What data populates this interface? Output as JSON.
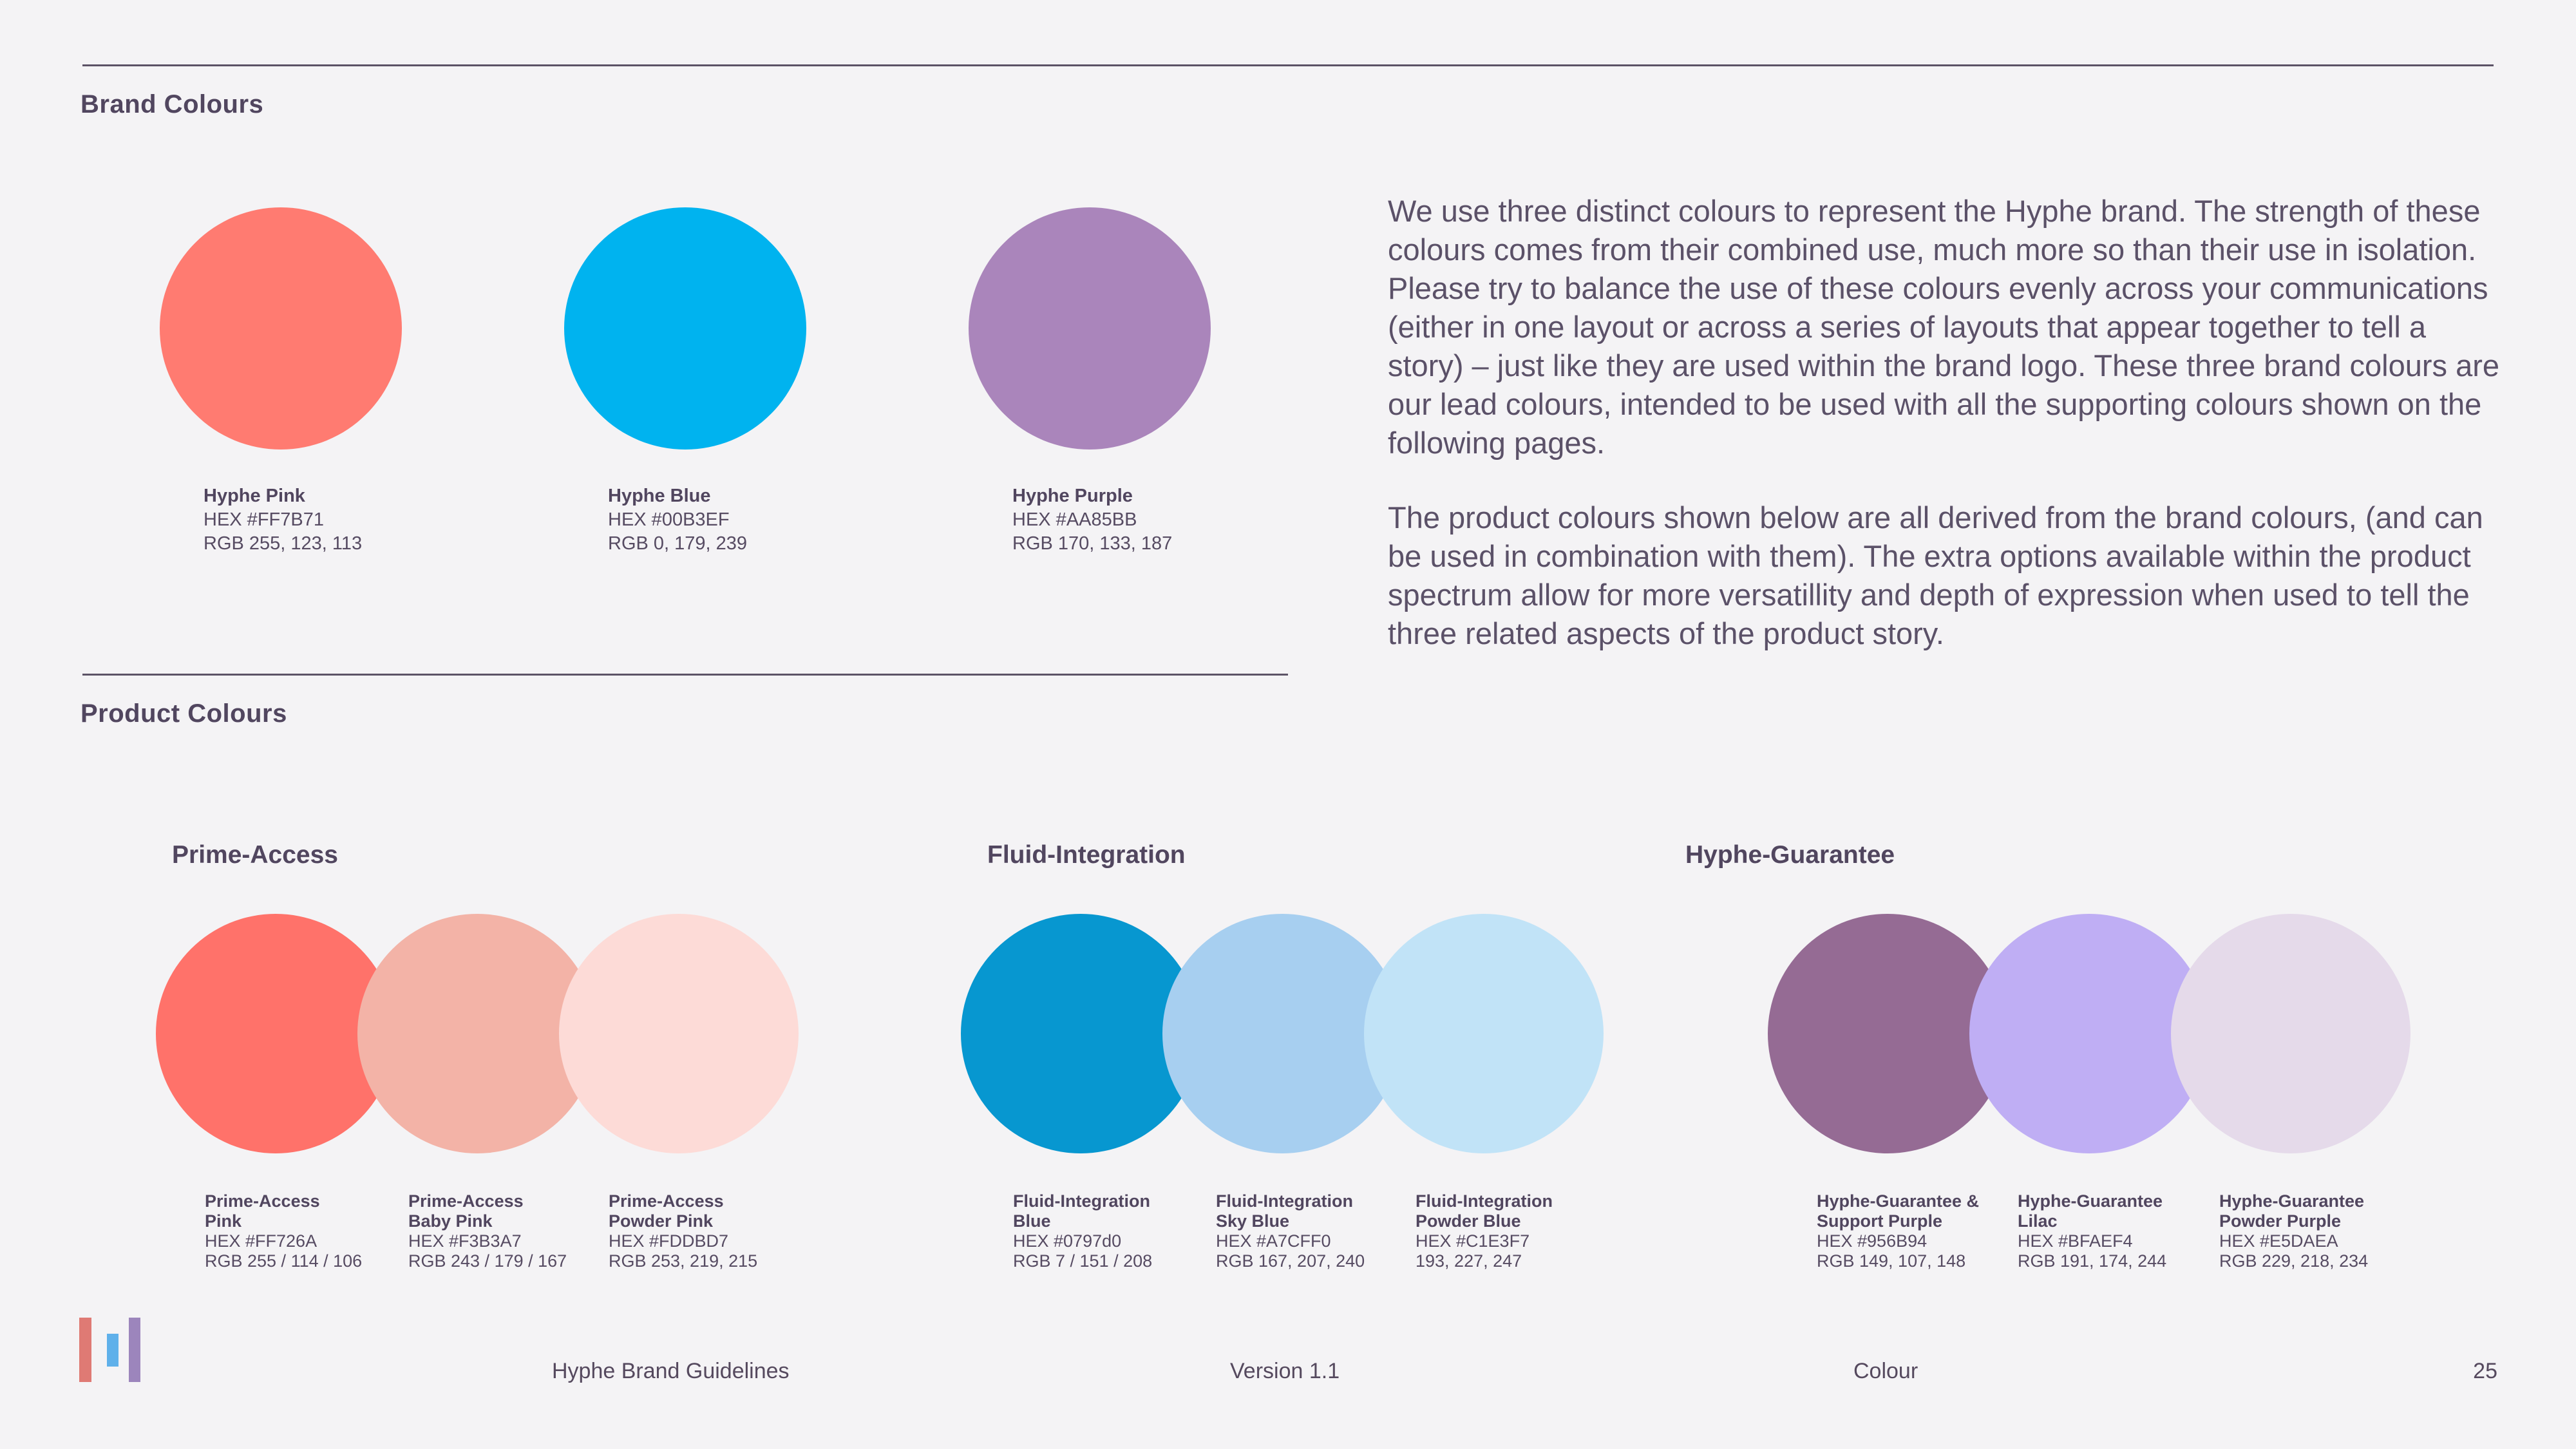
{
  "page": {
    "background": "#F4F3F5"
  },
  "brand_section": {
    "heading": "Brand Colours",
    "swatches": [
      {
        "name": "Hyphe Pink",
        "hex_label": "HEX #FF7B71",
        "rgb_label": "RGB 255, 123, 113",
        "color": "#FF7B71"
      },
      {
        "name": "Hyphe Blue",
        "hex_label": "HEX #00B3EF",
        "rgb_label": "RGB 0, 179, 239",
        "color": "#00B3EF"
      },
      {
        "name": "Hyphe Purple",
        "hex_label": "HEX #AA85BB",
        "rgb_label": "RGB 170, 133, 187",
        "color": "#AA85BB"
      }
    ],
    "description_paragraphs": [
      "We use three distinct colours to represent the Hyphe brand. The strength of these colours comes from their combined use, much more so than their use in isolation. Please try to balance the use of these colours evenly across your communications (either in one layout or across a series of layouts that appear together to tell a story) – just like they are used within the brand logo. These three brand colours are our lead colours, intended to be used with all the supporting colours shown on the following pages.",
      "The product colours shown below are all derived from the brand colours, (and can be used in combination with them). The extra options available within the product spectrum allow for more versatillity and depth of expression when used to tell the three related aspects of the product story."
    ]
  },
  "product_section": {
    "heading": "Product Colours",
    "groups": [
      {
        "title": "Prime-Access",
        "swatches": [
          {
            "name_lines": [
              "Prime-Access",
              "Pink"
            ],
            "hex_label": "HEX #FF726A",
            "rgb_label": "RGB 255 / 114 / 106",
            "color": "#FF726A"
          },
          {
            "name_lines": [
              "Prime-Access",
              "Baby Pink"
            ],
            "hex_label": "HEX #F3B3A7",
            "rgb_label": "RGB 243 / 179 / 167",
            "color": "#F3B3A7"
          },
          {
            "name_lines": [
              "Prime-Access",
              "Powder Pink"
            ],
            "hex_label": "HEX #FDDBD7",
            "rgb_label": "RGB 253, 219, 215",
            "color": "#FDDBD7"
          }
        ]
      },
      {
        "title": "Fluid-Integration",
        "swatches": [
          {
            "name_lines": [
              "Fluid-Integration",
              "Blue"
            ],
            "hex_label": "HEX #0797d0",
            "rgb_label": "RGB 7 / 151 / 208",
            "color": "#0797D0"
          },
          {
            "name_lines": [
              "Fluid-Integration",
              "Sky Blue"
            ],
            "hex_label": "HEX #A7CFF0",
            "rgb_label": "RGB 167, 207, 240",
            "color": "#A7CFF0"
          },
          {
            "name_lines": [
              "Fluid-Integration",
              "Powder Blue"
            ],
            "hex_label": "HEX #C1E3F7",
            "rgb_label": "193, 227, 247",
            "color": "#C1E3F7"
          }
        ]
      },
      {
        "title": "Hyphe-Guarantee",
        "swatches": [
          {
            "name_lines": [
              "Hyphe-Guarantee &",
              "Support Purple"
            ],
            "hex_label": "HEX #956B94",
            "rgb_label": "RGB 149, 107, 148",
            "color": "#956B94"
          },
          {
            "name_lines": [
              "Hyphe-Guarantee",
              "Lilac"
            ],
            "hex_label": "HEX #BFAEF4",
            "rgb_label": "RGB 191, 174, 244",
            "color": "#BFAEF4"
          },
          {
            "name_lines": [
              "Hyphe-Guarantee",
              "Powder Purple"
            ],
            "hex_label": "HEX #E5DAEA",
            "rgb_label": "RGB 229, 218, 234",
            "color": "#E5DAEA"
          }
        ]
      }
    ]
  },
  "footer": {
    "document_title": "Hyphe Brand Guidelines",
    "version_label": "Version 1.1",
    "section_label": "Colour",
    "page_number": "25",
    "logo_bar_colors": {
      "pink": "#DF7A74",
      "blue": "#5FB0EA",
      "purple": "#9C85BC"
    }
  }
}
